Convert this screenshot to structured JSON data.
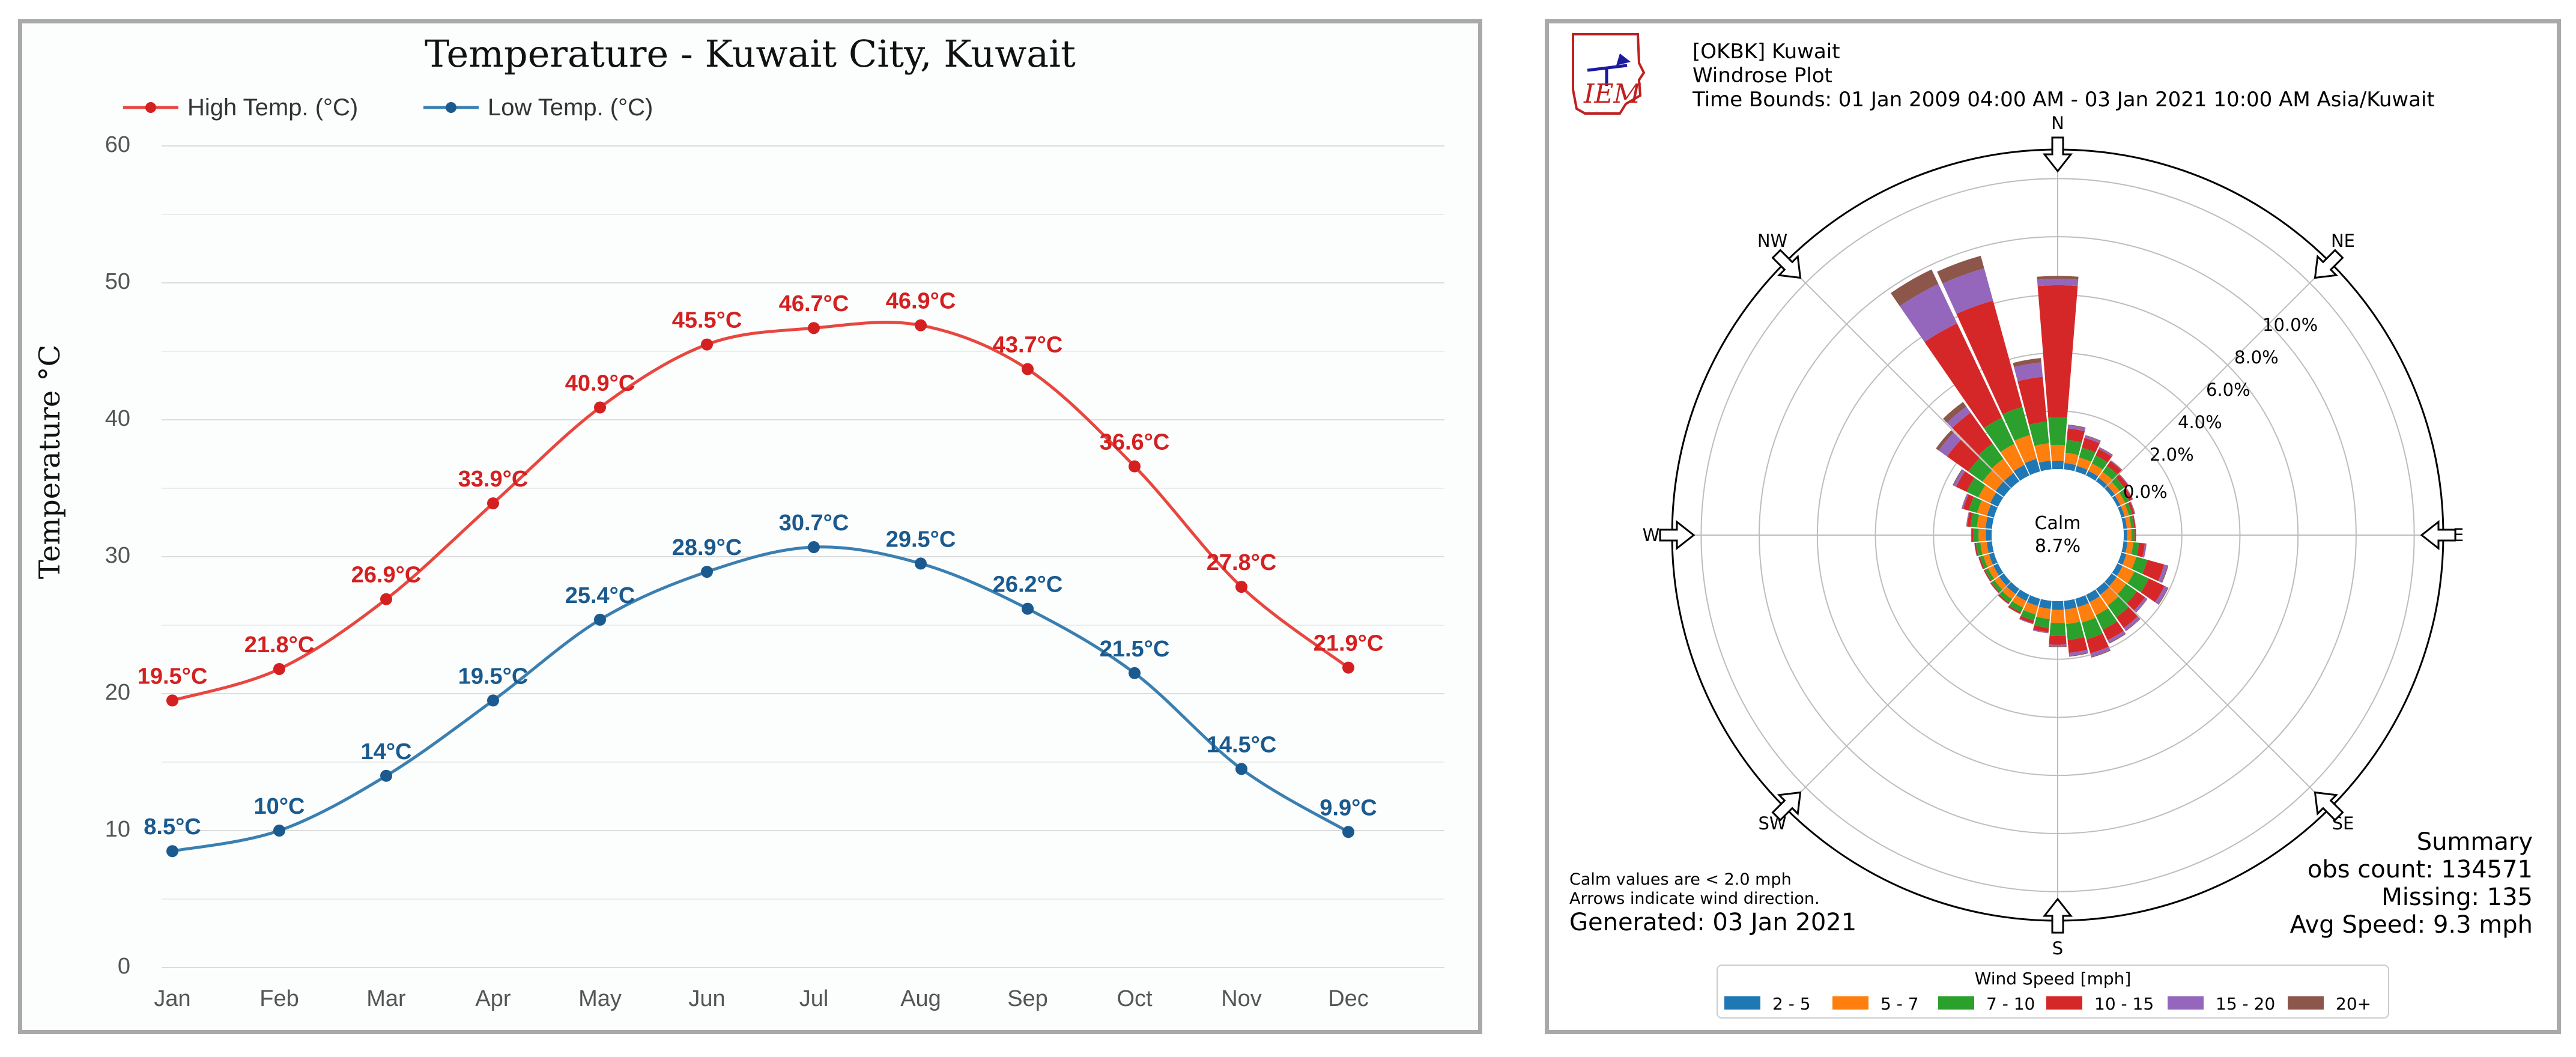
{
  "chart_data": [
    {
      "type": "line",
      "title": "Temperature -  Kuwait City, Kuwait",
      "xlabel": "",
      "ylabel": "Temperature °C",
      "ylim": [
        0,
        60
      ],
      "yticks": [
        "0",
        "10",
        "20",
        "30",
        "40",
        "50",
        "60"
      ],
      "grid": true,
      "legend_position": "top-left",
      "categories": [
        "Jan",
        "Feb",
        "Mar",
        "Apr",
        "May",
        "Jun",
        "Jul",
        "Aug",
        "Sep",
        "Oct",
        "Nov",
        "Dec"
      ],
      "series": [
        {
          "name": "High Temp. (°C)",
          "color": "#e8463f",
          "label_color": "#d42020",
          "values": [
            19.5,
            21.8,
            26.9,
            33.9,
            40.9,
            45.5,
            46.7,
            46.9,
            43.7,
            36.6,
            27.8,
            21.9
          ],
          "labels": [
            "19.5°C",
            "21.8°C",
            "26.9°C",
            "33.9°C",
            "40.9°C",
            "45.5°C",
            "46.7°C",
            "46.9°C",
            "43.7°C",
            "36.6°C",
            "27.8°C",
            "21.9°C"
          ]
        },
        {
          "name": "Low Temp. (°C)",
          "color": "#3a7fb0",
          "label_color": "#1a5a8e",
          "values": [
            8.5,
            10,
            14,
            19.5,
            25.4,
            28.9,
            30.7,
            29.5,
            26.2,
            21.5,
            14.5,
            9.9
          ],
          "labels": [
            "8.5°C",
            "10°C",
            "14°C",
            "19.5°C",
            "25.4°C",
            "28.9°C",
            "30.7°C",
            "29.5°C",
            "26.2°C",
            "21.5°C",
            "14.5°C",
            "9.9°C"
          ]
        }
      ]
    },
    {
      "type": "windrose",
      "logo_text": "IEM",
      "header": [
        "[OKBK] Kuwait",
        "Windrose Plot",
        "Time Bounds: 01 Jan 2009 04:00 AM - 03 Jan 2021 10:00 AM Asia/Kuwait"
      ],
      "directions": [
        "N",
        "NE",
        "E",
        "SE",
        "S",
        "SW",
        "W",
        "NW"
      ],
      "radial_labels": [
        "0.0%",
        "2.0%",
        "4.0%",
        "6.0%",
        "8.0%",
        "10.0%"
      ],
      "rmax": 11,
      "calm": {
        "label": "Calm",
        "value": "8.7%"
      },
      "legend_title": "Wind Speed [mph]",
      "speed_bins": [
        {
          "label": "2 - 5",
          "color": "#1f77b4"
        },
        {
          "label": "5 - 7",
          "color": "#ff7f0e"
        },
        {
          "label": "7 - 10",
          "color": "#2ca02c"
        },
        {
          "label": "10 - 15",
          "color": "#d62728"
        },
        {
          "label": "15 - 20",
          "color": "#9467bd"
        },
        {
          "label": "20+",
          "color": "#8c564b"
        }
      ],
      "sector_angles": [
        0,
        10,
        20,
        30,
        40,
        50,
        60,
        70,
        80,
        90,
        100,
        110,
        120,
        130,
        140,
        150,
        160,
        170,
        180,
        190,
        200,
        210,
        220,
        230,
        240,
        250,
        260,
        270,
        280,
        290,
        300,
        310,
        320,
        330,
        340,
        350
      ],
      "sector_values": [
        [
          0.28,
          0.55,
          0.95,
          4.55,
          0.22,
          0.1
        ],
        [
          0.22,
          0.35,
          0.45,
          0.4,
          0.1,
          0.03
        ],
        [
          0.2,
          0.3,
          0.35,
          0.35,
          0.08,
          0.02
        ],
        [
          0.18,
          0.28,
          0.3,
          0.25,
          0.05,
          0.02
        ],
        [
          0.15,
          0.25,
          0.25,
          0.2,
          0.03,
          0.01
        ],
        [
          0.14,
          0.2,
          0.2,
          0.15,
          0.02,
          0.01
        ],
        [
          0.12,
          0.18,
          0.15,
          0.12,
          0.02,
          0.01
        ],
        [
          0.12,
          0.15,
          0.12,
          0.08,
          0.02,
          0.01
        ],
        [
          0.12,
          0.15,
          0.1,
          0.05,
          0.01,
          0.0
        ],
        [
          0.12,
          0.15,
          0.1,
          0.05,
          0.01,
          0.0
        ],
        [
          0.14,
          0.2,
          0.2,
          0.2,
          0.05,
          0.01
        ],
        [
          0.18,
          0.35,
          0.4,
          0.6,
          0.12,
          0.03
        ],
        [
          0.2,
          0.45,
          0.55,
          0.6,
          0.12,
          0.03
        ],
        [
          0.22,
          0.4,
          0.45,
          0.35,
          0.08,
          0.02
        ],
        [
          0.25,
          0.45,
          0.5,
          0.45,
          0.1,
          0.03
        ],
        [
          0.28,
          0.5,
          0.55,
          0.4,
          0.1,
          0.03
        ],
        [
          0.3,
          0.55,
          0.6,
          0.5,
          0.12,
          0.03
        ],
        [
          0.3,
          0.5,
          0.55,
          0.45,
          0.1,
          0.03
        ],
        [
          0.3,
          0.45,
          0.45,
          0.3,
          0.06,
          0.02
        ],
        [
          0.28,
          0.35,
          0.3,
          0.15,
          0.03,
          0.01
        ],
        [
          0.26,
          0.3,
          0.22,
          0.1,
          0.02,
          0.01
        ],
        [
          0.24,
          0.25,
          0.18,
          0.06,
          0.01,
          0.0
        ],
        [
          0.22,
          0.22,
          0.15,
          0.05,
          0.01,
          0.0
        ],
        [
          0.2,
          0.2,
          0.13,
          0.04,
          0.01,
          0.0
        ],
        [
          0.18,
          0.2,
          0.12,
          0.04,
          0.01,
          0.0
        ],
        [
          0.18,
          0.2,
          0.12,
          0.05,
          0.01,
          0.0
        ],
        [
          0.18,
          0.22,
          0.15,
          0.05,
          0.01,
          0.0
        ],
        [
          0.2,
          0.25,
          0.18,
          0.07,
          0.01,
          0.0
        ],
        [
          0.22,
          0.3,
          0.22,
          0.12,
          0.02,
          0.01
        ],
        [
          0.25,
          0.35,
          0.3,
          0.2,
          0.05,
          0.01
        ],
        [
          0.3,
          0.45,
          0.45,
          0.4,
          0.1,
          0.03
        ],
        [
          0.35,
          0.55,
          0.6,
          0.9,
          0.35,
          0.12
        ],
        [
          0.35,
          0.6,
          0.65,
          1.3,
          0.25,
          0.2
        ],
        [
          0.4,
          0.8,
          1.0,
          3.6,
          1.5,
          0.55
        ],
        [
          0.45,
          0.85,
          1.0,
          3.8,
          1.15,
          0.45
        ],
        [
          0.3,
          0.6,
          0.75,
          1.55,
          0.5,
          0.15
        ]
      ],
      "notes": [
        "Calm values are < 2.0 mph",
        "Arrows indicate wind direction."
      ],
      "generated": "Generated: 03 Jan 2021",
      "summary": [
        "Summary",
        "obs count: 134571",
        "Missing: 135",
        "Avg Speed: 9.3 mph"
      ]
    }
  ]
}
